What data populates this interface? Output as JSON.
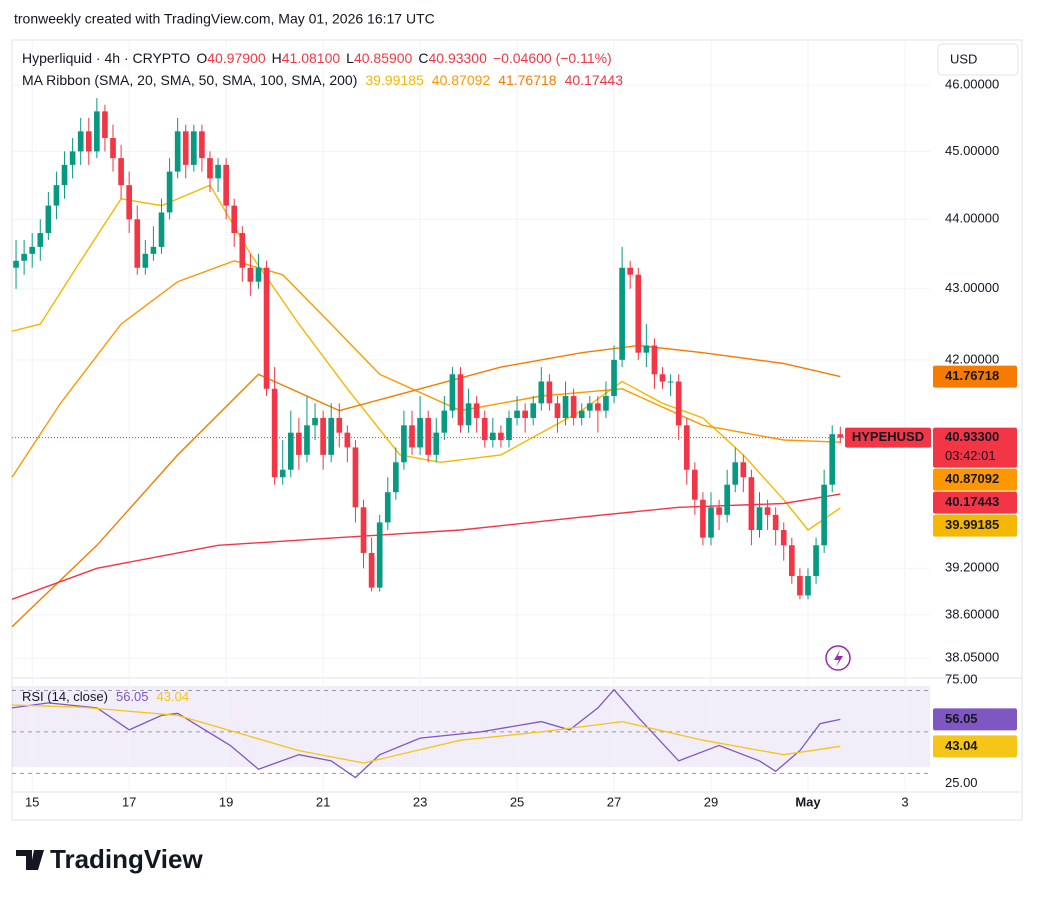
{
  "header": {
    "credit": "tronweekly created with TradingView.com, May 01, 2026 16:17 UTC",
    "currency": "USD",
    "logo": "TradingView"
  },
  "chart_data": {
    "type": "candlestick",
    "title": "Hyperliquid · 4h · CRYPTO",
    "ohlc": [
      {
        "key": "O",
        "value": "40.97900"
      },
      {
        "key": "H",
        "value": "41.08100"
      },
      {
        "key": "L",
        "value": "40.85900"
      },
      {
        "key": "C",
        "value": "40.93300"
      }
    ],
    "change": "−0.04600 (−0.11%)",
    "ma_title": "MA Ribbon (SMA, 20, SMA, 50, SMA, 100, SMA, 200)",
    "log_scale": true,
    "grid": true,
    "up_color": "#089981",
    "down_color": "#f23645",
    "ylim": [
      37.84,
      46.69
    ],
    "yticks": [
      {
        "value": 46,
        "label": "46.00000"
      },
      {
        "value": 45,
        "label": "45.00000"
      },
      {
        "value": 44,
        "label": "44.00000"
      },
      {
        "value": 43,
        "label": "43.00000"
      },
      {
        "value": 42,
        "label": "42.00000"
      },
      {
        "value": 39.2,
        "label": "39.20000"
      },
      {
        "value": 38.6,
        "label": "38.60000"
      },
      {
        "value": 38.05,
        "label": "38.05000"
      }
    ],
    "xlim": [
      -0.5,
      113.1
    ],
    "xticks": [
      {
        "value": 2,
        "label": "15"
      },
      {
        "value": 14,
        "label": "17"
      },
      {
        "value": 26,
        "label": "19"
      },
      {
        "value": 38,
        "label": "21"
      },
      {
        "value": 50,
        "label": "23"
      },
      {
        "value": 62,
        "label": "25"
      },
      {
        "value": 74,
        "label": "27"
      },
      {
        "value": 86,
        "label": "29"
      },
      {
        "value": 98,
        "label": "May"
      },
      {
        "value": 110,
        "label": "3"
      }
    ],
    "candles": [
      [
        43.3,
        43.7,
        43.0,
        43.4
      ],
      [
        43.4,
        43.7,
        43.2,
        43.5
      ],
      [
        43.5,
        43.8,
        43.3,
        43.6
      ],
      [
        43.6,
        44.0,
        43.4,
        43.8
      ],
      [
        43.8,
        44.4,
        43.7,
        44.2
      ],
      [
        44.2,
        44.7,
        44.0,
        44.5
      ],
      [
        44.5,
        45.0,
        44.3,
        44.8
      ],
      [
        44.8,
        45.2,
        44.6,
        45.0
      ],
      [
        45.0,
        45.5,
        44.8,
        45.3
      ],
      [
        45.3,
        45.5,
        44.8,
        45.0
      ],
      [
        45.0,
        45.8,
        44.9,
        45.6
      ],
      [
        45.6,
        45.7,
        45.0,
        45.2
      ],
      [
        45.2,
        45.4,
        44.7,
        44.9
      ],
      [
        44.9,
        45.1,
        44.3,
        44.5
      ],
      [
        44.5,
        44.7,
        43.8,
        44.0
      ],
      [
        44.0,
        44.2,
        43.2,
        43.3
      ],
      [
        43.3,
        43.7,
        43.2,
        43.5
      ],
      [
        43.5,
        43.9,
        43.4,
        43.6
      ],
      [
        43.6,
        44.3,
        43.5,
        44.1
      ],
      [
        44.1,
        44.9,
        44.0,
        44.7
      ],
      [
        44.7,
        45.5,
        44.6,
        45.3
      ],
      [
        45.3,
        45.4,
        44.6,
        44.8
      ],
      [
        44.8,
        45.4,
        44.7,
        45.3
      ],
      [
        45.3,
        45.4,
        44.7,
        44.9
      ],
      [
        44.9,
        45.0,
        44.4,
        44.6
      ],
      [
        44.6,
        44.9,
        44.4,
        44.8
      ],
      [
        44.8,
        44.9,
        44.0,
        44.2
      ],
      [
        44.2,
        44.3,
        43.6,
        43.8
      ],
      [
        43.8,
        43.9,
        43.1,
        43.3
      ],
      [
        43.3,
        43.5,
        42.9,
        43.1
      ],
      [
        43.1,
        43.5,
        43.0,
        43.3
      ],
      [
        43.3,
        43.4,
        41.5,
        41.6
      ],
      [
        41.6,
        41.9,
        40.3,
        40.4
      ],
      [
        40.4,
        40.9,
        40.3,
        40.5
      ],
      [
        40.5,
        41.3,
        40.4,
        41.0
      ],
      [
        41.0,
        41.2,
        40.5,
        40.7
      ],
      [
        40.7,
        41.5,
        40.6,
        41.1
      ],
      [
        41.1,
        41.4,
        40.9,
        41.2
      ],
      [
        41.2,
        41.3,
        40.5,
        40.7
      ],
      [
        40.7,
        41.4,
        40.6,
        41.2
      ],
      [
        41.2,
        41.4,
        40.8,
        41.0
      ],
      [
        41.0,
        41.1,
        40.6,
        40.8
      ],
      [
        40.8,
        40.9,
        39.8,
        40.0
      ],
      [
        40.0,
        40.1,
        39.2,
        39.4
      ],
      [
        39.4,
        39.6,
        38.9,
        38.95
      ],
      [
        38.95,
        39.9,
        38.9,
        39.8
      ],
      [
        39.8,
        40.4,
        39.7,
        40.2
      ],
      [
        40.2,
        40.8,
        40.1,
        40.6
      ],
      [
        40.6,
        41.3,
        40.5,
        41.1
      ],
      [
        41.1,
        41.3,
        40.7,
        40.8
      ],
      [
        40.8,
        41.5,
        40.7,
        41.2
      ],
      [
        41.2,
        41.3,
        40.6,
        40.7
      ],
      [
        40.7,
        41.2,
        40.6,
        41.0
      ],
      [
        41.0,
        41.5,
        40.9,
        41.3
      ],
      [
        41.3,
        41.9,
        41.2,
        41.8
      ],
      [
        41.8,
        41.9,
        41.0,
        41.1
      ],
      [
        41.1,
        41.6,
        41.0,
        41.4
      ],
      [
        41.4,
        41.5,
        41.0,
        41.2
      ],
      [
        41.2,
        41.3,
        40.8,
        40.9
      ],
      [
        40.9,
        41.2,
        40.8,
        41.0
      ],
      [
        41.0,
        41.1,
        40.8,
        40.9
      ],
      [
        40.9,
        41.3,
        40.8,
        41.2
      ],
      [
        41.2,
        41.5,
        41.1,
        41.3
      ],
      [
        41.3,
        41.4,
        41.0,
        41.2
      ],
      [
        41.2,
        41.5,
        41.1,
        41.4
      ],
      [
        41.4,
        41.9,
        41.3,
        41.7
      ],
      [
        41.7,
        41.8,
        41.3,
        41.4
      ],
      [
        41.4,
        41.5,
        41.0,
        41.2
      ],
      [
        41.2,
        41.7,
        41.1,
        41.5
      ],
      [
        41.5,
        41.6,
        41.1,
        41.2
      ],
      [
        41.2,
        41.4,
        41.1,
        41.3
      ],
      [
        41.3,
        41.5,
        41.2,
        41.4
      ],
      [
        41.4,
        41.5,
        41.0,
        41.3
      ],
      [
        41.3,
        41.7,
        41.2,
        41.5
      ],
      [
        41.5,
        42.2,
        41.4,
        42.0
      ],
      [
        42.0,
        43.6,
        41.9,
        43.3
      ],
      [
        43.3,
        43.4,
        43.0,
        43.2
      ],
      [
        43.2,
        43.3,
        42.0,
        42.1
      ],
      [
        42.1,
        42.5,
        41.9,
        42.2
      ],
      [
        42.2,
        42.3,
        41.6,
        41.8
      ],
      [
        41.8,
        41.9,
        41.6,
        41.7
      ],
      [
        41.7,
        41.8,
        41.5,
        41.7
      ],
      [
        41.7,
        41.8,
        40.9,
        41.1
      ],
      [
        41.1,
        41.2,
        40.3,
        40.5
      ],
      [
        40.5,
        40.6,
        39.9,
        40.1
      ],
      [
        40.1,
        40.2,
        39.5,
        39.6
      ],
      [
        39.6,
        40.2,
        39.5,
        40.0
      ],
      [
        40.0,
        40.1,
        39.7,
        39.9
      ],
      [
        39.9,
        40.5,
        39.8,
        40.3
      ],
      [
        40.3,
        40.8,
        40.2,
        40.6
      ],
      [
        40.6,
        40.7,
        40.2,
        40.4
      ],
      [
        40.4,
        40.5,
        39.5,
        39.7
      ],
      [
        39.7,
        40.2,
        39.6,
        40.0
      ],
      [
        40.0,
        40.1,
        39.7,
        39.9
      ],
      [
        39.9,
        40.0,
        39.5,
        39.7
      ],
      [
        39.7,
        39.8,
        39.3,
        39.5
      ],
      [
        39.5,
        39.6,
        39.0,
        39.1
      ],
      [
        39.1,
        39.2,
        38.8,
        38.85
      ],
      [
        38.85,
        39.2,
        38.8,
        39.1
      ],
      [
        39.1,
        39.6,
        39.0,
        39.5
      ],
      [
        39.5,
        40.5,
        39.4,
        40.3
      ],
      [
        40.3,
        41.1,
        40.2,
        40.979
      ],
      [
        40.979,
        41.081,
        40.859,
        40.933
      ]
    ],
    "price_label": {
      "symbol": "HYPEHUSD",
      "value": "40.93300",
      "countdown": "03:42:01"
    },
    "ma_series": [
      {
        "color": "#f5b800",
        "badge_text": "#131722",
        "x": [
          -0.5,
          3,
          8,
          13,
          18,
          24,
          29,
          35,
          41,
          47.5,
          52.5,
          60,
          65,
          70,
          75,
          80,
          85,
          90,
          95,
          98,
          102
        ],
        "values": [
          42.4,
          42.5,
          43.4,
          44.3,
          44.2,
          44.5,
          43.5,
          42.5,
          41.6,
          40.7,
          40.6,
          40.7,
          41.0,
          41.3,
          41.7,
          41.4,
          41.2,
          40.7,
          40.1,
          39.7,
          39.99185
        ],
        "last_label": "39.99185"
      },
      {
        "color": "#ff9800",
        "badge_text": "#131722",
        "x": [
          -0.5,
          5.5,
          13,
          20,
          27,
          33,
          39,
          45,
          55,
          65,
          75,
          85,
          95,
          102
        ],
        "values": [
          40.4,
          41.4,
          42.5,
          43.1,
          43.4,
          43.2,
          42.5,
          41.8,
          41.3,
          41.5,
          41.6,
          41.1,
          40.9,
          40.87092
        ],
        "last_label": "40.87092"
      },
      {
        "color": "#f57c00",
        "badge_text": "#ffffff",
        "x": [
          -0.5,
          10,
          20,
          30,
          40,
          50,
          60,
          70,
          77,
          85,
          95,
          102
        ],
        "values": [
          38.45,
          39.5,
          40.7,
          41.8,
          41.3,
          41.6,
          41.9,
          42.1,
          42.2,
          42.1,
          41.95,
          41.76718
        ],
        "last_label": "41.76718"
      },
      {
        "color": "#f23645",
        "badge_text": "#ffffff",
        "x": [
          -0.5,
          10,
          25,
          40,
          55,
          70,
          82,
          95,
          102
        ],
        "values": [
          38.8,
          39.2,
          39.5,
          39.6,
          39.7,
          39.87,
          40.0,
          40.05,
          40.17443
        ],
        "last_label": "40.17443"
      }
    ],
    "rsi": {
      "title": "RSI (14, close)",
      "ylim": [
        21,
        77
      ],
      "yticks": [
        {
          "value": 75,
          "label": "75.00"
        },
        {
          "value": 25,
          "label": "25.00"
        }
      ],
      "bands": [
        70,
        50,
        30
      ],
      "series": [
        {
          "color": "#7e57c2",
          "x": [
            -0.5,
            4,
            10,
            14,
            18,
            20,
            26.5,
            30,
            35,
            39,
            42,
            45,
            50,
            57.5,
            65,
            68.5,
            72,
            74,
            77,
            82,
            87,
            92,
            94,
            97,
            99.5,
            102
          ],
          "values": [
            61.6,
            64,
            61.6,
            51,
            58,
            59,
            43.5,
            32,
            39,
            36,
            28,
            39,
            47,
            50,
            55,
            51,
            61.6,
            70.4,
            57,
            36,
            43.5,
            36,
            31,
            41,
            54,
            56.05
          ],
          "last_label": "56.05"
        },
        {
          "color": "#f5c518",
          "x": [
            -0.5,
            8,
            20,
            35,
            43,
            55,
            65,
            75,
            85,
            95,
            102
          ],
          "values": [
            63,
            62,
            58,
            41,
            35,
            46,
            50,
            55,
            46,
            39,
            43.04
          ],
          "last_label": "43.04"
        }
      ]
    }
  }
}
